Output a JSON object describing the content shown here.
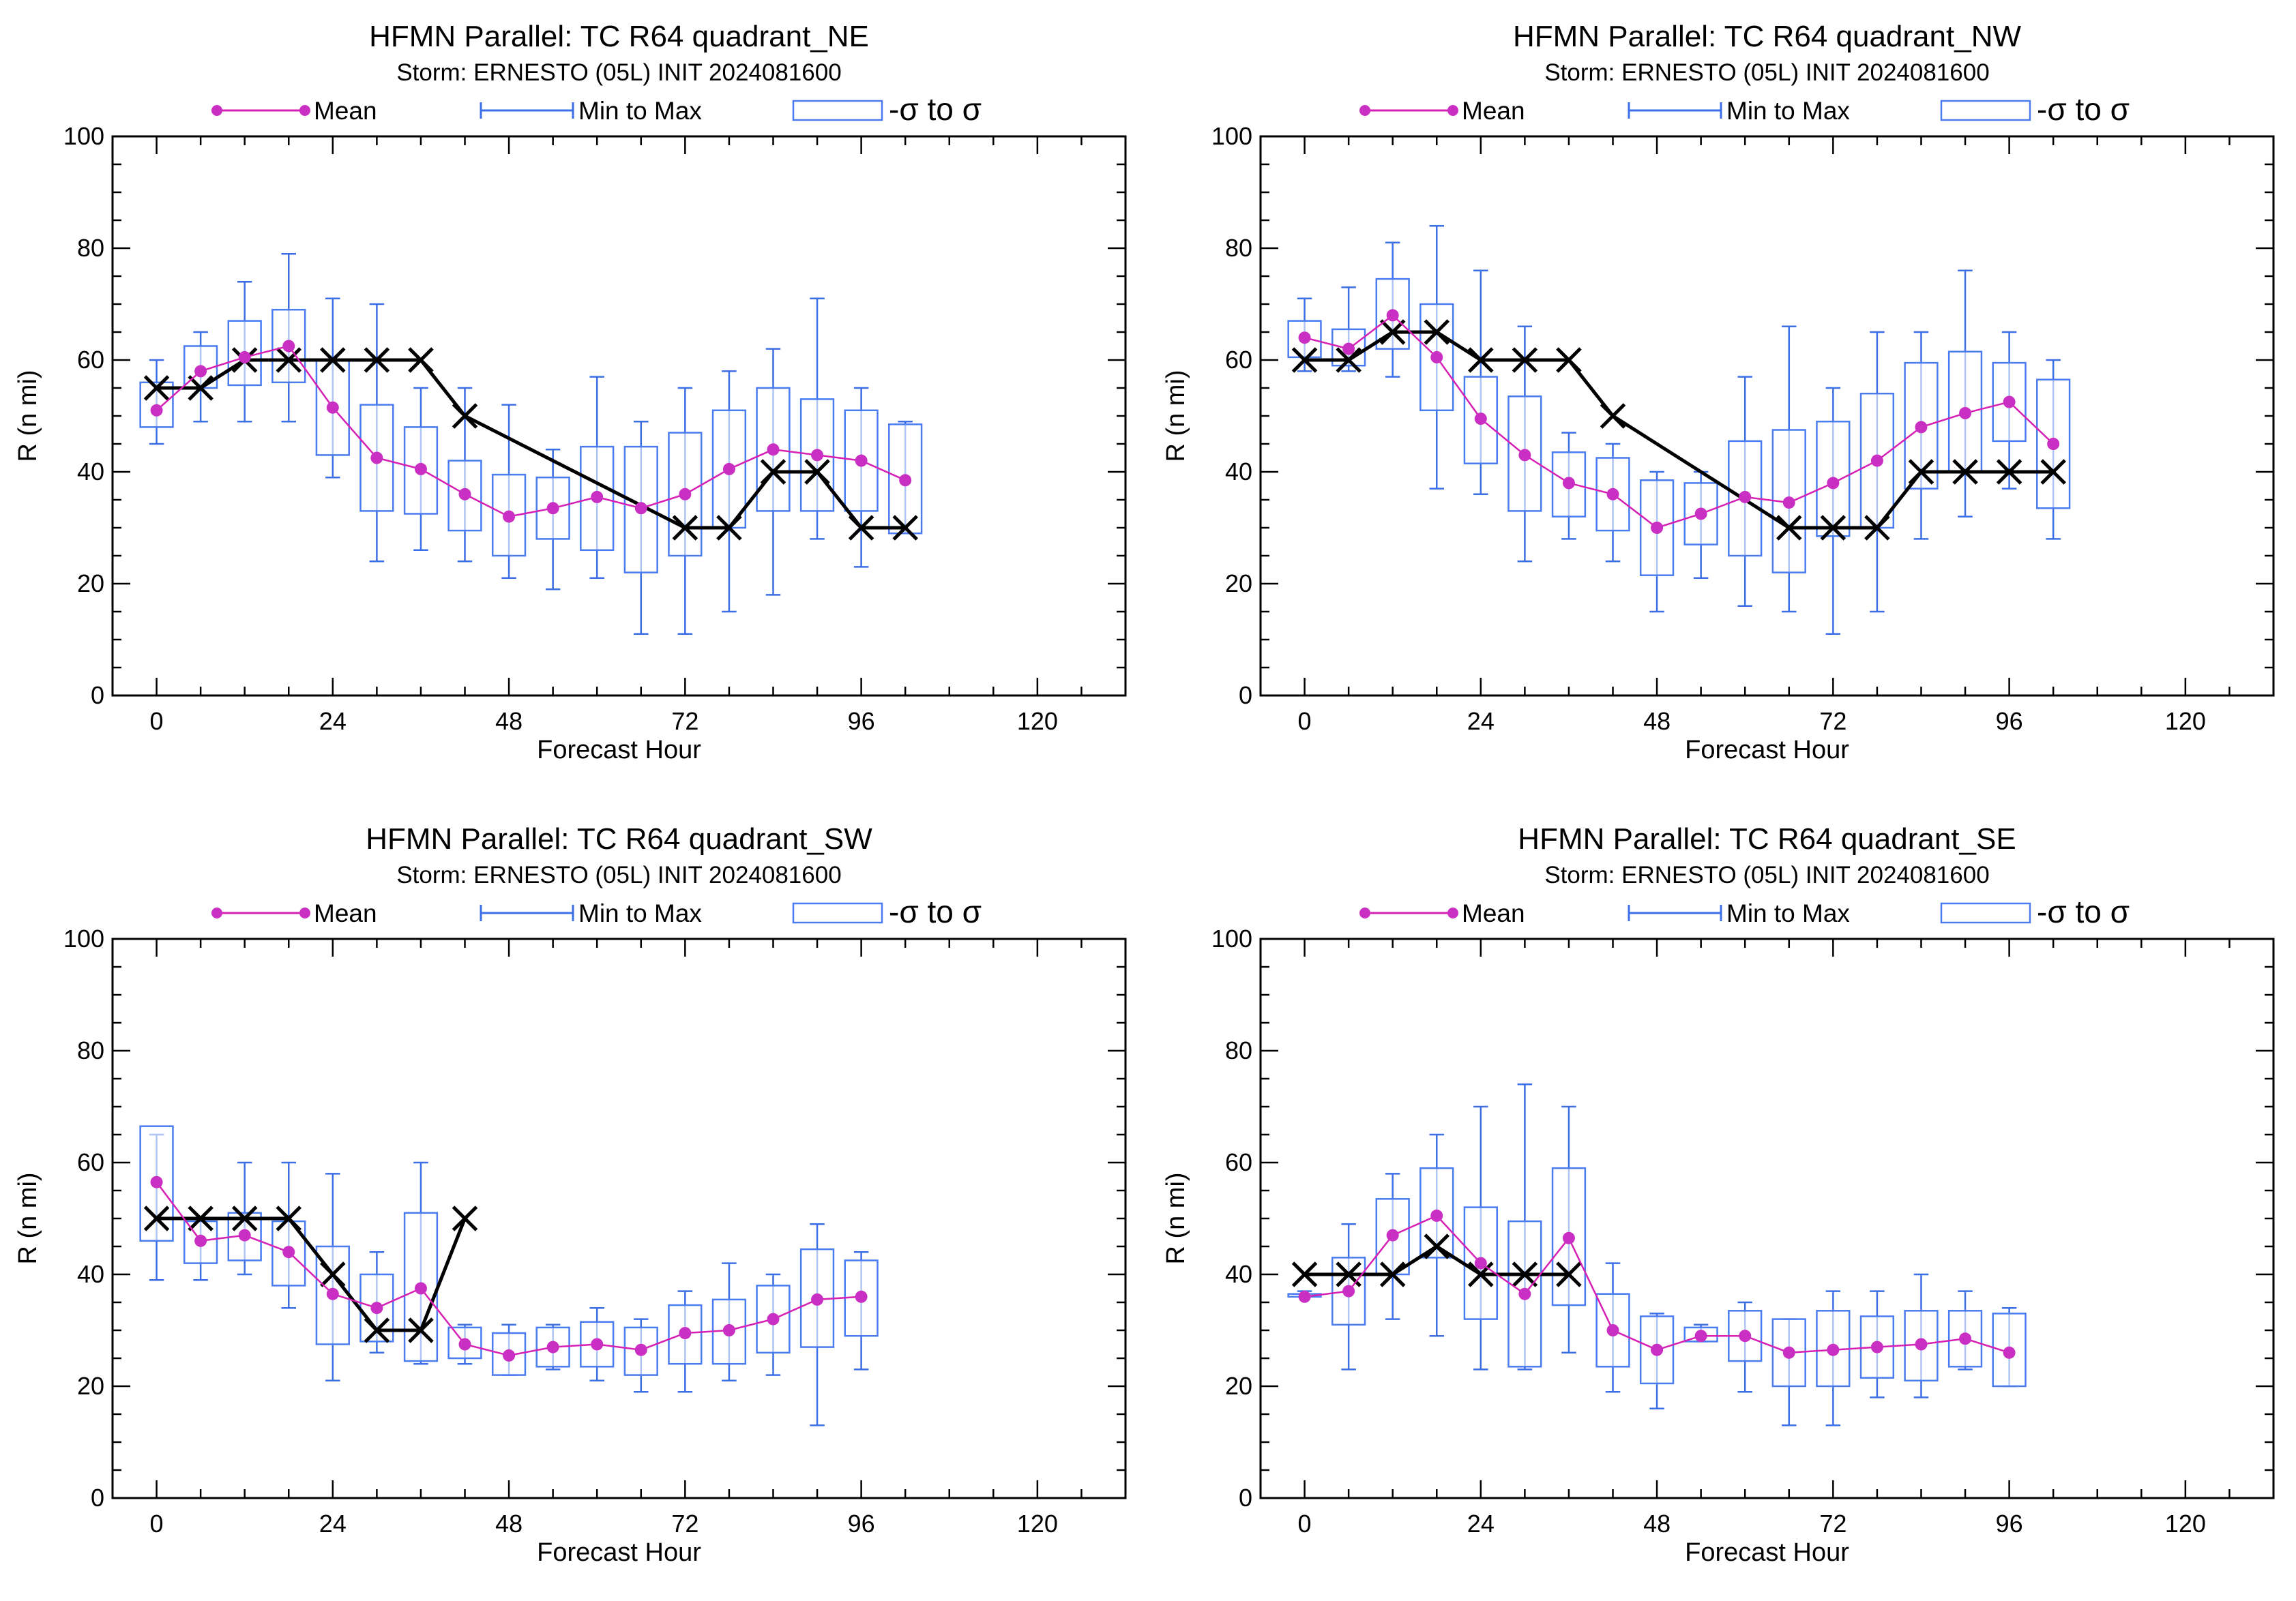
{
  "colors": {
    "mean": "#d61fb5",
    "mean_marker": "#c92fc2",
    "whisker": "#3c6ee6",
    "box": "#4a7cf0",
    "observed": "#000000",
    "axis": "#000000"
  },
  "legend": {
    "mean_label": "Mean",
    "range_label": "Min to Max",
    "box_label": "-σ to σ"
  },
  "chart_data": [
    {
      "type": "box",
      "title": "HFMN Parallel: TC  R64 quadrant_NE",
      "subtitle": "Storm: ERNESTO (05L) INIT 2024081600",
      "xlabel": "Forecast Hour",
      "ylabel": "R (n mi)",
      "xlim": [
        -6,
        132
      ],
      "ylim": [
        0,
        100
      ],
      "xticks": [
        0,
        24,
        48,
        72,
        96,
        120
      ],
      "yticks": [
        0,
        20,
        40,
        60,
        80,
        100
      ],
      "grid": false,
      "legend_position": "top",
      "series": [
        {
          "name": "Mean",
          "x": [
            0,
            6,
            12,
            18,
            24,
            30,
            36,
            42,
            48,
            54,
            60,
            66,
            72,
            78,
            84,
            90,
            96,
            102
          ],
          "values": [
            51,
            58,
            60.5,
            62.5,
            51.5,
            42.5,
            40.5,
            36,
            32,
            33.5,
            35.5,
            33.5,
            36,
            40.5,
            44,
            43,
            42,
            38.5
          ]
        },
        {
          "name": "Min to Max",
          "x": [
            0,
            6,
            12,
            18,
            24,
            30,
            36,
            42,
            48,
            54,
            60,
            66,
            72,
            78,
            84,
            90,
            96,
            102
          ],
          "low": [
            45,
            49,
            49,
            49,
            39,
            24,
            26,
            24,
            21,
            19,
            21,
            11,
            11,
            15,
            18,
            28,
            23,
            29
          ],
          "high": [
            60,
            65,
            74,
            79,
            71,
            70,
            55,
            55,
            52,
            44,
            57,
            49,
            55,
            58,
            62,
            71,
            55,
            49
          ]
        },
        {
          "name": "-σ to σ",
          "x": [
            0,
            6,
            12,
            18,
            24,
            30,
            36,
            42,
            48,
            54,
            60,
            66,
            72,
            78,
            84,
            90,
            96,
            102
          ],
          "low": [
            48,
            55,
            55.5,
            56,
            43,
            33,
            32.5,
            29.5,
            25,
            28,
            26,
            22,
            25,
            30,
            33,
            33,
            33,
            29
          ],
          "high": [
            56,
            62.5,
            67,
            69,
            60,
            52,
            48,
            42,
            39.5,
            39,
            44.5,
            44.5,
            47,
            51,
            55,
            53,
            51,
            48.5
          ]
        },
        {
          "x": [
            0,
            6,
            12,
            18,
            24,
            30,
            36,
            42,
            72,
            78,
            84,
            90,
            96,
            102
          ],
          "values": [
            55,
            55,
            60,
            60,
            60,
            60,
            60,
            50,
            30,
            30,
            40,
            40,
            30,
            30
          ]
        }
      ]
    },
    {
      "type": "box",
      "title": "HFMN Parallel: TC  R64 quadrant_NW",
      "subtitle": "Storm: ERNESTO (05L) INIT 2024081600",
      "xlabel": "Forecast Hour",
      "ylabel": "R (n mi)",
      "xlim": [
        -6,
        132
      ],
      "ylim": [
        0,
        100
      ],
      "xticks": [
        0,
        24,
        48,
        72,
        96,
        120
      ],
      "yticks": [
        0,
        20,
        40,
        60,
        80,
        100
      ],
      "grid": false,
      "legend_position": "top",
      "series": [
        {
          "name": "Mean",
          "x": [
            0,
            6,
            12,
            18,
            24,
            30,
            36,
            42,
            48,
            54,
            60,
            66,
            72,
            78,
            84,
            90,
            96,
            102
          ],
          "values": [
            64,
            62,
            68,
            60.5,
            49.5,
            43,
            38,
            36,
            30,
            32.5,
            35.5,
            34.5,
            38,
            42,
            48,
            50.5,
            52.5,
            45
          ]
        },
        {
          "name": "Min to Max",
          "x": [
            0,
            6,
            12,
            18,
            24,
            30,
            36,
            42,
            48,
            54,
            60,
            66,
            72,
            78,
            84,
            90,
            96,
            102
          ],
          "low": [
            58,
            58,
            57,
            37,
            36,
            24,
            28,
            24,
            15,
            21,
            16,
            15,
            11,
            15,
            28,
            32,
            37,
            28
          ],
          "high": [
            71,
            73,
            81,
            84,
            76,
            66,
            47,
            45,
            40,
            40,
            57,
            66,
            55,
            65,
            65,
            76,
            65,
            60
          ]
        },
        {
          "name": "-σ to σ",
          "x": [
            0,
            6,
            12,
            18,
            24,
            30,
            36,
            42,
            48,
            54,
            60,
            66,
            72,
            78,
            84,
            90,
            96,
            102
          ],
          "low": [
            60.5,
            59,
            62,
            51,
            41.5,
            33,
            32,
            29.5,
            21.5,
            27,
            25,
            22,
            28.5,
            30,
            37,
            40,
            45.5,
            33.5
          ],
          "high": [
            67,
            65.5,
            74.5,
            70,
            57,
            53.5,
            43.5,
            42.5,
            38.5,
            38,
            45.5,
            47.5,
            49,
            54,
            59.5,
            61.5,
            59.5,
            56.5
          ]
        },
        {
          "x": [
            0,
            6,
            12,
            18,
            24,
            30,
            36,
            42,
            66,
            72,
            78,
            84,
            90,
            96,
            102
          ],
          "values": [
            60,
            60,
            65,
            65,
            60,
            60,
            60,
            50,
            30,
            30,
            30,
            40,
            40,
            40,
            40
          ]
        }
      ]
    },
    {
      "type": "box",
      "title": "HFMN Parallel: TC  R64 quadrant_SW",
      "subtitle": "Storm: ERNESTO (05L) INIT 2024081600",
      "xlabel": "Forecast Hour",
      "ylabel": "R (n mi)",
      "xlim": [
        -6,
        132
      ],
      "ylim": [
        0,
        100
      ],
      "xticks": [
        0,
        24,
        48,
        72,
        96,
        120
      ],
      "yticks": [
        0,
        20,
        40,
        60,
        80,
        100
      ],
      "grid": false,
      "legend_position": "top",
      "series": [
        {
          "name": "Mean",
          "x": [
            0,
            6,
            12,
            18,
            24,
            30,
            36,
            42,
            48,
            54,
            60,
            66,
            72,
            78,
            84,
            90,
            96
          ],
          "values": [
            56.5,
            46,
            47,
            44,
            36.5,
            34,
            37.5,
            27.5,
            25.5,
            27,
            27.5,
            26.5,
            29.5,
            30,
            32,
            35.5,
            36
          ]
        },
        {
          "name": "Min to Max",
          "x": [
            0,
            6,
            12,
            18,
            24,
            30,
            36,
            42,
            48,
            54,
            60,
            66,
            72,
            78,
            84,
            90,
            96
          ],
          "low": [
            39,
            39,
            40,
            34,
            21,
            26,
            24,
            24,
            22,
            23,
            21,
            19,
            19,
            21,
            22,
            13,
            23
          ],
          "high": [
            65,
            50,
            60,
            60,
            58,
            44,
            60,
            31,
            31,
            31,
            34,
            32,
            37,
            42,
            40,
            49,
            44
          ]
        },
        {
          "name": "-σ to σ",
          "x": [
            0,
            6,
            12,
            18,
            24,
            30,
            36,
            42,
            48,
            54,
            60,
            66,
            72,
            78,
            84,
            90,
            96
          ],
          "low": [
            46,
            42,
            42.5,
            38,
            27.5,
            28,
            24.5,
            25,
            22,
            23.5,
            23.5,
            22,
            24,
            24,
            26,
            27,
            29
          ],
          "high": [
            66.5,
            49.5,
            51,
            49.5,
            45,
            40,
            51,
            30.5,
            29.5,
            30.5,
            31.5,
            30.5,
            34.5,
            35.5,
            38,
            44.5,
            42.5
          ]
        },
        {
          "x": [
            0,
            6,
            12,
            18,
            24,
            30,
            36,
            42
          ],
          "values": [
            50,
            50,
            50,
            50,
            40,
            30,
            30,
            50
          ]
        }
      ]
    },
    {
      "type": "box",
      "title": "HFMN Parallel: TC  R64 quadrant_SE",
      "subtitle": "Storm: ERNESTO (05L) INIT 2024081600",
      "xlabel": "Forecast Hour",
      "ylabel": "R (n mi)",
      "xlim": [
        -6,
        132
      ],
      "ylim": [
        0,
        100
      ],
      "xticks": [
        0,
        24,
        48,
        72,
        96,
        120
      ],
      "yticks": [
        0,
        20,
        40,
        60,
        80,
        100
      ],
      "grid": false,
      "legend_position": "top",
      "series": [
        {
          "name": "Mean",
          "x": [
            0,
            6,
            12,
            18,
            24,
            30,
            36,
            42,
            48,
            54,
            60,
            66,
            72,
            78,
            84,
            90,
            96
          ],
          "values": [
            36,
            37,
            47,
            50.5,
            42,
            36.5,
            46.5,
            30,
            26.5,
            29,
            29,
            26,
            26.5,
            27,
            27.5,
            28.5,
            26
          ]
        },
        {
          "name": "Min to Max",
          "x": [
            0,
            6,
            12,
            18,
            24,
            30,
            36,
            42,
            48,
            54,
            60,
            66,
            72,
            78,
            84,
            90,
            96
          ],
          "low": [
            36,
            23,
            32,
            29,
            23,
            23,
            26,
            19,
            16,
            28,
            19,
            13,
            13,
            18,
            18,
            23,
            20
          ],
          "high": [
            37,
            49,
            58,
            65,
            70,
            74,
            70,
            42,
            33,
            31,
            35,
            32,
            37,
            37,
            40,
            37,
            34
          ]
        },
        {
          "name": "-σ to σ",
          "x": [
            0,
            6,
            12,
            18,
            24,
            30,
            36,
            42,
            48,
            54,
            60,
            66,
            72,
            78,
            84,
            90,
            96
          ],
          "low": [
            36,
            31,
            40,
            43,
            32,
            23.5,
            34.5,
            23.5,
            20.5,
            28,
            24.5,
            20,
            20,
            21.5,
            21,
            23.5,
            20
          ],
          "high": [
            36.5,
            43,
            53.5,
            59,
            52,
            49.5,
            59,
            36.5,
            32.5,
            30.5,
            33.5,
            32,
            33.5,
            32.5,
            33.5,
            33.5,
            33
          ]
        },
        {
          "x": [
            0,
            6,
            12,
            18,
            24,
            30,
            36
          ],
          "values": [
            40,
            40,
            40,
            45,
            40,
            40,
            40
          ]
        }
      ]
    }
  ]
}
